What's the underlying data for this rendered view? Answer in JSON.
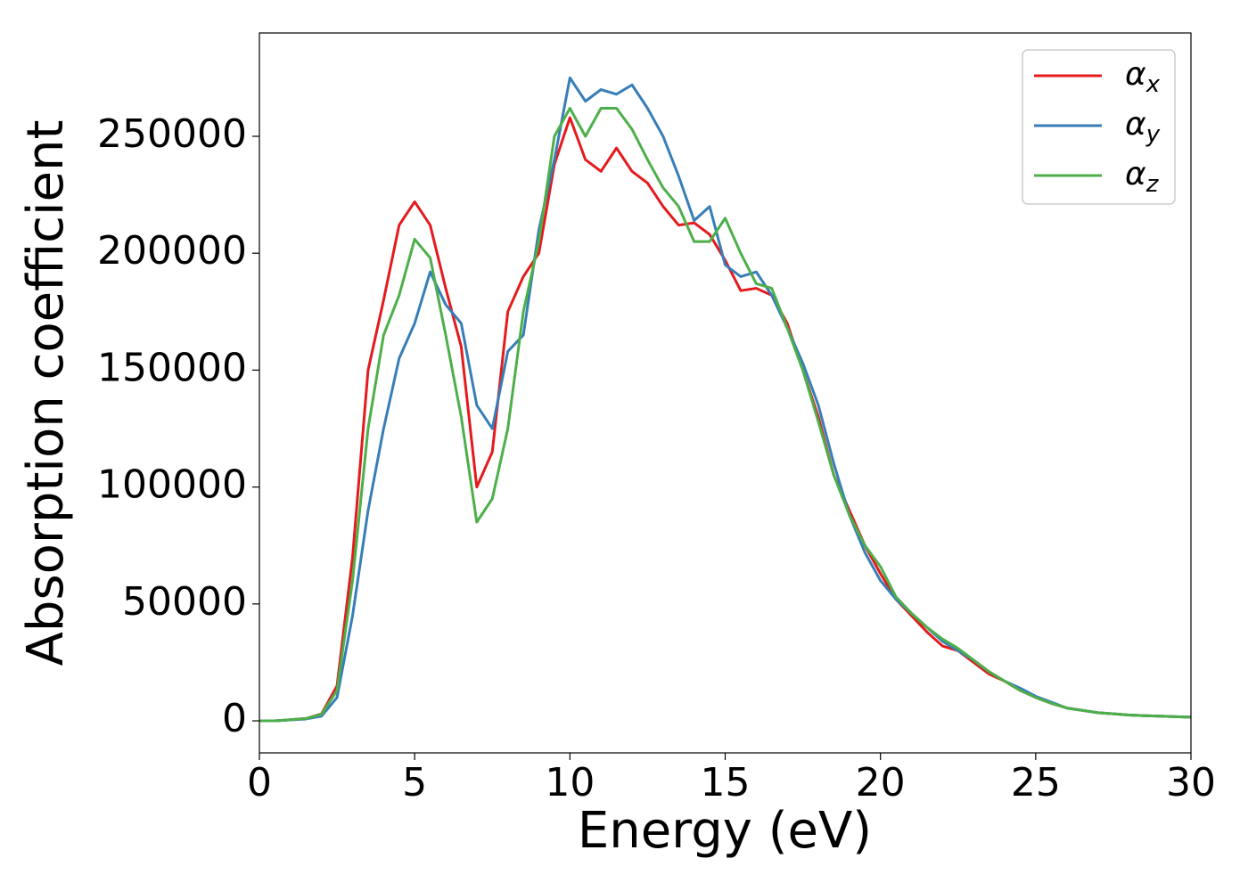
{
  "chart_data": {
    "type": "line",
    "xlabel": "Energy (eV)",
    "ylabel": "Absorption coefficient",
    "x": [
      0,
      0.5,
      1,
      1.5,
      2,
      2.5,
      3,
      3.5,
      4,
      4.5,
      5,
      5.5,
      6,
      6.5,
      7,
      7.5,
      8,
      8.5,
      9,
      9.5,
      10,
      10.5,
      11,
      11.5,
      12,
      12.5,
      13,
      13.5,
      14,
      14.5,
      15,
      15.5,
      16,
      16.5,
      17,
      17.5,
      18,
      18.5,
      19,
      19.5,
      20,
      20.5,
      21,
      21.5,
      22,
      22.5,
      23,
      23.5,
      24,
      24.5,
      25,
      25.5,
      26,
      26.5,
      27,
      27.5,
      28,
      28.5,
      29,
      29.5,
      30
    ],
    "series": [
      {
        "name": "αx",
        "color": "#e41a1c",
        "values": [
          0,
          0,
          500,
          1000,
          3000,
          15000,
          70000,
          150000,
          180000,
          212000,
          222000,
          212000,
          185000,
          160000,
          100000,
          115000,
          175000,
          190000,
          200000,
          238000,
          258000,
          240000,
          235000,
          245000,
          235000,
          230000,
          220000,
          212000,
          213000,
          208000,
          197000,
          184000,
          185000,
          182000,
          170000,
          150000,
          130000,
          105000,
          90000,
          75000,
          63000,
          52000,
          45000,
          38000,
          32000,
          30000,
          25000,
          20000,
          17000,
          13000,
          10000,
          7500,
          5500,
          4500,
          3500,
          3000,
          2500,
          2200,
          2000,
          1800,
          1600
        ]
      },
      {
        "name": "αy",
        "color": "#377eb8",
        "values": [
          0,
          0,
          400,
          800,
          2000,
          10000,
          45000,
          90000,
          125000,
          155000,
          170000,
          192000,
          178000,
          170000,
          135000,
          125000,
          158000,
          165000,
          210000,
          240000,
          275000,
          265000,
          270000,
          268000,
          272000,
          262000,
          250000,
          233000,
          214000,
          220000,
          195000,
          190000,
          192000,
          182000,
          168000,
          153000,
          135000,
          110000,
          88000,
          72000,
          60000,
          52000,
          46000,
          40000,
          34000,
          30000,
          26000,
          21000,
          17000,
          14000,
          10500,
          8000,
          5500,
          4500,
          3500,
          3000,
          2500,
          2200,
          2000,
          1800,
          1600
        ]
      },
      {
        "name": "αz",
        "color": "#4daf4a",
        "values": [
          0,
          0,
          500,
          1000,
          2800,
          13000,
          60000,
          125000,
          165000,
          182000,
          206000,
          198000,
          165000,
          130000,
          85000,
          95000,
          125000,
          175000,
          205000,
          250000,
          262000,
          250000,
          262000,
          262000,
          253000,
          240000,
          228000,
          220000,
          205000,
          205000,
          215000,
          200000,
          187000,
          185000,
          168000,
          150000,
          128000,
          105000,
          88000,
          75000,
          66000,
          53000,
          46000,
          40000,
          35000,
          31000,
          26000,
          21000,
          17000,
          13000,
          10000,
          7500,
          5500,
          4500,
          3500,
          3000,
          2500,
          2200,
          2000,
          1800,
          1600
        ]
      }
    ],
    "xlim": [
      0,
      30
    ],
    "xticks": [
      0,
      5,
      10,
      15,
      20,
      25,
      30
    ],
    "ylim": [
      -13700,
      294200
    ],
    "yticks": [
      0,
      50000,
      100000,
      150000,
      200000,
      250000
    ],
    "grid": false,
    "legend": "upper right"
  }
}
